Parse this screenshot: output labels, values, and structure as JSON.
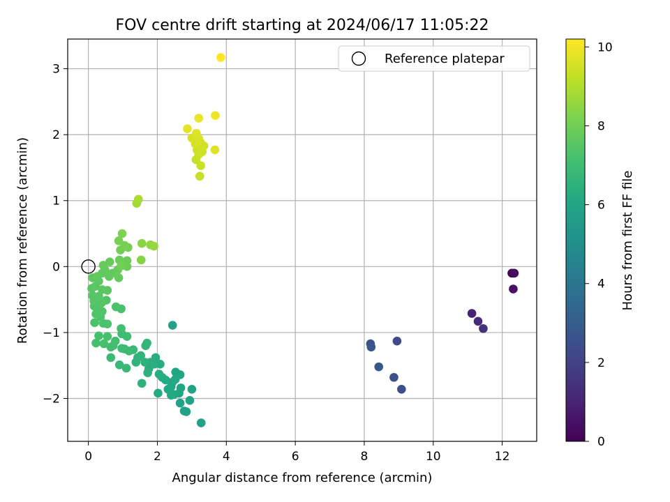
{
  "chart_data": {
    "type": "scatter",
    "title": "FOV centre drift starting at 2024/06/17 11:05:22",
    "xlabel": "Angular distance from reference (arcmin)",
    "ylabel": "Rotation from reference (arcmin)",
    "xlim": [
      -0.6,
      13.0
    ],
    "ylim": [
      -2.65,
      3.45
    ],
    "xticks": [
      0,
      2,
      4,
      6,
      8,
      10,
      12
    ],
    "xtick_labels": [
      "0",
      "2",
      "4",
      "6",
      "8",
      "10",
      "12"
    ],
    "yticks": [
      -2,
      -1,
      0,
      1,
      2,
      3
    ],
    "ytick_labels": [
      "−2",
      "−1",
      "0",
      "1",
      "2",
      "3"
    ],
    "grid": true,
    "colormap": "viridis",
    "colorbar": {
      "label": "Hours from first FF file",
      "range": [
        0,
        10.2
      ],
      "ticks": [
        0,
        2,
        4,
        6,
        8,
        10
      ],
      "tick_labels": [
        "0",
        "2",
        "4",
        "6",
        "8",
        "10"
      ]
    },
    "legend": {
      "placement": "top-right",
      "entries": [
        {
          "label": "Reference platepar",
          "marker": "open-circle",
          "x": 0,
          "y": 0
        }
      ]
    },
    "points": [
      {
        "x": 12.28,
        "y": -0.1,
        "t": 0.1
      },
      {
        "x": 12.35,
        "y": -0.1,
        "t": 0.3
      },
      {
        "x": 12.32,
        "y": -0.34,
        "t": 0.5
      },
      {
        "x": 11.12,
        "y": -0.71,
        "t": 1.0
      },
      {
        "x": 11.3,
        "y": -0.83,
        "t": 1.2
      },
      {
        "x": 11.45,
        "y": -0.94,
        "t": 1.4
      },
      {
        "x": 8.95,
        "y": -1.13,
        "t": 2.3
      },
      {
        "x": 8.18,
        "y": -1.17,
        "t": 2.6
      },
      {
        "x": 8.2,
        "y": -1.22,
        "t": 2.7
      },
      {
        "x": 8.42,
        "y": -1.52,
        "t": 2.8
      },
      {
        "x": 8.86,
        "y": -1.68,
        "t": 2.5
      },
      {
        "x": 9.08,
        "y": -1.86,
        "t": 2.4
      },
      {
        "x": 2.44,
        "y": -0.89,
        "t": 5.8
      },
      {
        "x": 3.27,
        "y": -2.37,
        "t": 5.8
      },
      {
        "x": 3.0,
        "y": -1.86,
        "t": 5.9
      },
      {
        "x": 2.94,
        "y": -2.03,
        "t": 5.9
      },
      {
        "x": 2.78,
        "y": -2.19,
        "t": 5.9
      },
      {
        "x": 2.84,
        "y": -2.2,
        "t": 5.9
      },
      {
        "x": 2.66,
        "y": -2.07,
        "t": 5.9
      },
      {
        "x": 2.68,
        "y": -1.84,
        "t": 6.0
      },
      {
        "x": 2.63,
        "y": -1.92,
        "t": 6.0
      },
      {
        "x": 2.53,
        "y": -1.6,
        "t": 6.0
      },
      {
        "x": 2.66,
        "y": -1.64,
        "t": 6.0
      },
      {
        "x": 2.52,
        "y": -1.71,
        "t": 6.1
      },
      {
        "x": 2.44,
        "y": -1.75,
        "t": 6.1
      },
      {
        "x": 2.4,
        "y": -1.82,
        "t": 6.1
      },
      {
        "x": 2.31,
        "y": -1.86,
        "t": 6.1
      },
      {
        "x": 2.48,
        "y": -1.94,
        "t": 6.1
      },
      {
        "x": 2.4,
        "y": -1.95,
        "t": 6.2
      },
      {
        "x": 2.24,
        "y": -1.72,
        "t": 6.2
      },
      {
        "x": 2.14,
        "y": -1.68,
        "t": 6.2
      },
      {
        "x": 2.02,
        "y": -1.92,
        "t": 6.2
      },
      {
        "x": 2.05,
        "y": -1.63,
        "t": 6.3
      },
      {
        "x": 2.08,
        "y": -1.48,
        "t": 6.3
      },
      {
        "x": 1.95,
        "y": -1.38,
        "t": 6.3
      },
      {
        "x": 1.91,
        "y": -1.48,
        "t": 6.4
      },
      {
        "x": 1.8,
        "y": -1.45,
        "t": 6.4
      },
      {
        "x": 1.75,
        "y": -1.55,
        "t": 6.4
      },
      {
        "x": 1.72,
        "y": -1.61,
        "t": 6.5
      },
      {
        "x": 1.64,
        "y": -1.45,
        "t": 6.5
      },
      {
        "x": 1.55,
        "y": -1.77,
        "t": 6.5
      },
      {
        "x": 1.52,
        "y": -1.35,
        "t": 6.6
      },
      {
        "x": 1.43,
        "y": -1.38,
        "t": 6.6
      },
      {
        "x": 1.38,
        "y": -1.45,
        "t": 6.6
      },
      {
        "x": 1.66,
        "y": -1.2,
        "t": 6.7
      },
      {
        "x": 1.7,
        "y": -1.16,
        "t": 6.7
      },
      {
        "x": 1.3,
        "y": -1.26,
        "t": 6.8
      },
      {
        "x": 1.1,
        "y": -1.54,
        "t": 6.8
      },
      {
        "x": 0.9,
        "y": -1.49,
        "t": 6.8
      },
      {
        "x": 0.65,
        "y": -1.38,
        "t": 6.9
      },
      {
        "x": 1.18,
        "y": -1.28,
        "t": 6.9
      },
      {
        "x": 1.05,
        "y": -1.25,
        "t": 6.9
      },
      {
        "x": 0.97,
        "y": -1.24,
        "t": 7.0
      },
      {
        "x": 1.12,
        "y": -1.06,
        "t": 7.0
      },
      {
        "x": 0.97,
        "y": -1.02,
        "t": 7.0
      },
      {
        "x": 0.95,
        "y": -0.94,
        "t": 7.1
      },
      {
        "x": 0.78,
        "y": -1.13,
        "t": 7.1
      },
      {
        "x": 0.72,
        "y": -1.2,
        "t": 7.1
      },
      {
        "x": 0.65,
        "y": -1.22,
        "t": 7.1
      },
      {
        "x": 0.55,
        "y": -1.06,
        "t": 7.2
      },
      {
        "x": 0.45,
        "y": -1.17,
        "t": 7.2
      },
      {
        "x": 0.3,
        "y": -1.05,
        "t": 7.2
      },
      {
        "x": 0.22,
        "y": -1.16,
        "t": 7.2
      },
      {
        "x": 0.95,
        "y": -0.64,
        "t": 7.2
      },
      {
        "x": 0.8,
        "y": -0.61,
        "t": 7.3
      },
      {
        "x": 0.55,
        "y": -0.87,
        "t": 7.3
      },
      {
        "x": 0.43,
        "y": -0.86,
        "t": 7.3
      },
      {
        "x": 0.35,
        "y": -0.76,
        "t": 7.3
      },
      {
        "x": 0.18,
        "y": -0.85,
        "t": 7.3
      },
      {
        "x": 0.22,
        "y": -0.72,
        "t": 7.4
      },
      {
        "x": 0.4,
        "y": -0.68,
        "t": 7.4
      },
      {
        "x": 0.28,
        "y": -0.62,
        "t": 7.4
      },
      {
        "x": 0.17,
        "y": -0.6,
        "t": 7.4
      },
      {
        "x": 0.52,
        "y": -0.51,
        "t": 7.4
      },
      {
        "x": 0.38,
        "y": -0.55,
        "t": 7.5
      },
      {
        "x": 0.3,
        "y": -0.45,
        "t": 7.5
      },
      {
        "x": 0.16,
        "y": -0.52,
        "t": 7.5
      },
      {
        "x": 0.12,
        "y": -0.44,
        "t": 7.5
      },
      {
        "x": 0.1,
        "y": -0.33,
        "t": 7.5
      },
      {
        "x": 0.2,
        "y": -0.3,
        "t": 7.6
      },
      {
        "x": 0.4,
        "y": -0.35,
        "t": 7.6
      },
      {
        "x": 0.55,
        "y": -0.36,
        "t": 7.6
      },
      {
        "x": 0.3,
        "y": -0.22,
        "t": 7.6
      },
      {
        "x": 0.12,
        "y": -0.17,
        "t": 7.6
      },
      {
        "x": 0.25,
        "y": -0.15,
        "t": 7.7
      },
      {
        "x": 0.4,
        "y": -0.1,
        "t": 7.7
      },
      {
        "x": 0.48,
        "y": -0.05,
        "t": 7.7
      },
      {
        "x": 0.6,
        "y": -0.15,
        "t": 7.7
      },
      {
        "x": 0.7,
        "y": -0.1,
        "t": 7.7
      },
      {
        "x": 0.88,
        "y": -0.17,
        "t": 7.8
      },
      {
        "x": 0.85,
        "y": -0.05,
        "t": 7.8
      },
      {
        "x": 0.43,
        "y": 0.02,
        "t": 7.8
      },
      {
        "x": 0.62,
        "y": 0.07,
        "t": 7.8
      },
      {
        "x": 0.9,
        "y": 0.1,
        "t": 7.9
      },
      {
        "x": 1.05,
        "y": 0.05,
        "t": 7.9
      },
      {
        "x": 1.12,
        "y": 0.0,
        "t": 7.9
      },
      {
        "x": 1.12,
        "y": 0.09,
        "t": 7.9
      },
      {
        "x": 0.95,
        "y": 0.01,
        "t": 8.0
      },
      {
        "x": 0.93,
        "y": 0.25,
        "t": 8.0
      },
      {
        "x": 1.15,
        "y": 0.29,
        "t": 8.0
      },
      {
        "x": 1.05,
        "y": 0.32,
        "t": 8.1
      },
      {
        "x": 0.88,
        "y": 0.39,
        "t": 8.1
      },
      {
        "x": 0.98,
        "y": 0.5,
        "t": 8.2
      },
      {
        "x": 1.53,
        "y": 0.1,
        "t": 8.3
      },
      {
        "x": 1.55,
        "y": 0.35,
        "t": 8.4
      },
      {
        "x": 1.8,
        "y": 0.33,
        "t": 8.5
      },
      {
        "x": 1.9,
        "y": 0.31,
        "t": 8.6
      },
      {
        "x": 1.4,
        "y": 0.96,
        "t": 8.8
      },
      {
        "x": 1.45,
        "y": 1.02,
        "t": 8.9
      },
      {
        "x": 3.23,
        "y": 1.37,
        "t": 9.3
      },
      {
        "x": 3.12,
        "y": 1.62,
        "t": 9.3
      },
      {
        "x": 3.26,
        "y": 1.53,
        "t": 9.4
      },
      {
        "x": 3.2,
        "y": 1.7,
        "t": 9.4
      },
      {
        "x": 3.15,
        "y": 1.77,
        "t": 9.4
      },
      {
        "x": 3.3,
        "y": 1.74,
        "t": 9.5
      },
      {
        "x": 3.35,
        "y": 1.83,
        "t": 9.5
      },
      {
        "x": 3.25,
        "y": 1.88,
        "t": 9.5
      },
      {
        "x": 3.1,
        "y": 1.86,
        "t": 9.6
      },
      {
        "x": 3.2,
        "y": 1.94,
        "t": 9.6
      },
      {
        "x": 3.0,
        "y": 1.95,
        "t": 9.6
      },
      {
        "x": 3.13,
        "y": 2.02,
        "t": 9.7
      },
      {
        "x": 3.67,
        "y": 1.77,
        "t": 9.7
      },
      {
        "x": 2.87,
        "y": 2.09,
        "t": 9.8
      },
      {
        "x": 3.2,
        "y": 2.25,
        "t": 9.9
      },
      {
        "x": 3.68,
        "y": 2.29,
        "t": 10.0
      },
      {
        "x": 3.84,
        "y": 3.17,
        "t": 10.2
      }
    ]
  }
}
